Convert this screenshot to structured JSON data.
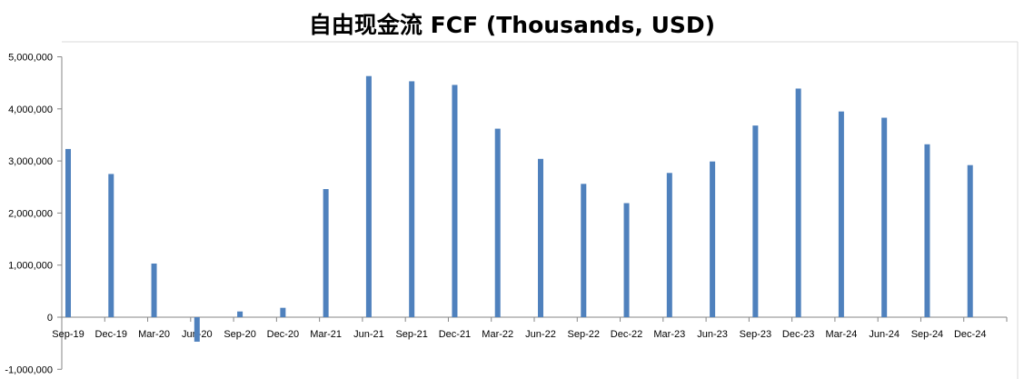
{
  "chart_data": {
    "type": "bar",
    "title": "自由现金流 FCF (Thousands, USD)",
    "xlabel": "",
    "ylabel": "",
    "ylim": [
      -1000000,
      5000000
    ],
    "y_ticks": [
      "5,000,000",
      "4,000,000",
      "3,000,000",
      "2,000,000",
      "1,000,000",
      "0",
      "-1,000,000"
    ],
    "y_tick_values": [
      5000000,
      4000000,
      3000000,
      2000000,
      1000000,
      0,
      -1000000
    ],
    "categories": [
      "Sep-19",
      "Dec-19",
      "Mar-20",
      "Jun-20",
      "Sep-20",
      "Dec-20",
      "Mar-21",
      "Jun-21",
      "Sep-21",
      "Dec-21",
      "Mar-22",
      "Jun-22",
      "Sep-22",
      "Dec-22",
      "Mar-23",
      "Jun-23",
      "Sep-23",
      "Dec-23",
      "Mar-24",
      "Jun-24",
      "Sep-24",
      "Dec-24"
    ],
    "values": [
      3230000,
      2750000,
      1030000,
      -470000,
      110000,
      180000,
      2460000,
      4630000,
      4530000,
      4460000,
      3620000,
      3040000,
      2560000,
      2190000,
      2770000,
      2990000,
      3680000,
      4390000,
      3950000,
      3830000,
      3320000,
      2920000
    ],
    "bar_color": "#4F81BD",
    "grid": false,
    "legend": "none"
  }
}
